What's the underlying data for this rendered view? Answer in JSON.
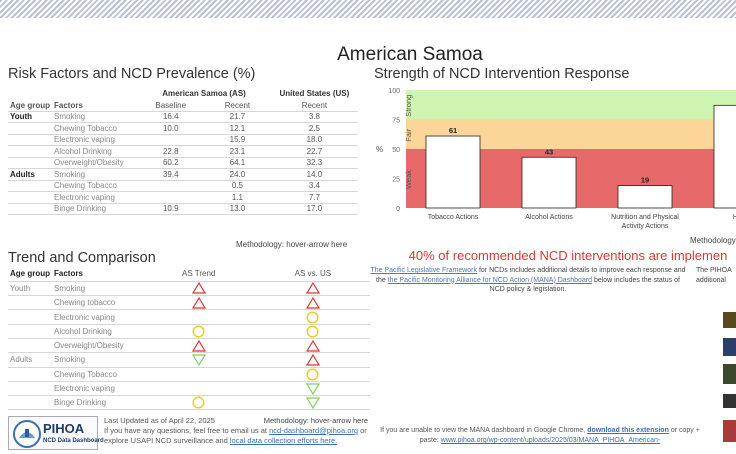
{
  "title": "American Samoa",
  "risk_table": {
    "section_title": "Risk Factors and NCD Prevalence (%)",
    "as_header": "American Samoa (AS)",
    "us_header": "United States (US)",
    "col_age": "Age group",
    "col_factors": "Factors",
    "col_baseline": "Baseline",
    "col_recent": "Recent",
    "col_us_recent": "Recent",
    "groups": [
      {
        "name": "Youth",
        "rows": [
          {
            "factor": "Smoking",
            "baseline": "16.4",
            "recent": "21.7",
            "us": "3.8"
          },
          {
            "factor": "Chewing Tobacco",
            "baseline": "10.0",
            "recent": "12.1",
            "us": "2.5"
          },
          {
            "factor": "Electronic vaping",
            "baseline": "",
            "recent": "15.9",
            "us": "18.0"
          },
          {
            "factor": "Alcohol Drinking",
            "baseline": "22.8",
            "recent": "23.1",
            "us": "22.7"
          },
          {
            "factor": "Overweight/Obesity",
            "baseline": "60.2",
            "recent": "64.1",
            "us": "32.3"
          }
        ]
      },
      {
        "name": "Adults",
        "rows": [
          {
            "factor": "Smoking",
            "baseline": "39.4",
            "recent": "24.0",
            "us": "14.0"
          },
          {
            "factor": "Chewing Tobacco",
            "baseline": "",
            "recent": "0.5",
            "us": "3.4"
          },
          {
            "factor": "Electronic vaping",
            "baseline": "",
            "recent": "1.1",
            "us": "7.7"
          },
          {
            "factor": "Binge Drinking",
            "baseline": "10.9",
            "recent": "13.0",
            "us": "17.0"
          }
        ]
      }
    ],
    "methodology": "Methodology: hover-arrow  here"
  },
  "trend": {
    "section_title": "Trend and Comparison",
    "col_age": "Age group",
    "col_factors": "Factors",
    "col_trend": "AS Trend",
    "col_vs": "AS vs. US",
    "groups": [
      {
        "name": "Youth",
        "rows": [
          {
            "factor": "Smoking",
            "trend": "up-red",
            "vs": "up-red"
          },
          {
            "factor": "Chewing tobacco",
            "trend": "up-red",
            "vs": "up-red"
          },
          {
            "factor": "Electronic vaping",
            "trend": "",
            "vs": "circle-yellow"
          },
          {
            "factor": "Alcohol Drinking",
            "trend": "circle-yellow",
            "vs": "circle-yellow"
          },
          {
            "factor": "Overweight/Obesity",
            "trend": "up-red",
            "vs": "up-red"
          }
        ]
      },
      {
        "name": "Adults",
        "rows": [
          {
            "factor": "Smoking",
            "trend": "down-green",
            "vs": "up-red"
          },
          {
            "factor": "Chewing Tobacco",
            "trend": "",
            "vs": "circle-yellow"
          },
          {
            "factor": "Electronic vaping",
            "trend": "",
            "vs": "down-green"
          },
          {
            "factor": "Binge Drinking",
            "trend": "circle-yellow",
            "vs": "down-green"
          }
        ]
      }
    ]
  },
  "chart_section_title": "Strength of NCD Intervention Response",
  "chart_data": {
    "type": "bar",
    "title": "Strength of NCD Intervention Response",
    "ylabel": "%",
    "ylim": [
      0,
      100
    ],
    "yticks": [
      0,
      25,
      50,
      75,
      100
    ],
    "bands": [
      {
        "label": "Weak",
        "from": 0,
        "to": 50,
        "color": "#e8696a"
      },
      {
        "label": "Fair",
        "from": 50,
        "to": 75,
        "color": "#fbd698"
      },
      {
        "label": "Strong",
        "from": 75,
        "to": 100,
        "color": "#cdf4b0"
      }
    ],
    "categories": [
      "Tobacco Actions",
      "Alcohol Actions",
      "Nutrition and Physical Activity Actions",
      "Healt"
    ],
    "values": [
      61,
      43,
      19,
      87
    ]
  },
  "chart_methodology": "Methodology:",
  "percent_note": "40% of recommended NCD interventions are implemen",
  "info_left": {
    "link1": "The Pacific Legislative Framework",
    "text1": " for NCDs includes additional details to improve each response and the ",
    "link2": "the Pacific Monitoring Alliance for NCD Action (MANA) Dashboard",
    "text2": " below includes the status of NCD policy & legislation."
  },
  "info_right": "The PIHOA additional",
  "footer": {
    "logo_title": "PIHOA",
    "logo_sub": "NCD Data Dashboard",
    "updated": "Last Updated as of April 22, 2025",
    "methodology": "Methodology: hover-arrow  here",
    "contact_pre": "If you have any questions, feel free to email us at ",
    "email": "ncd-dashboard@pihoa.org",
    "contact_mid": " or explore USAPI NCD surveillance and ",
    "link": "local data collection efforts here."
  },
  "chrome_note": {
    "pre": "If you are unable to view the MANA dashboard in Google Chrome, ",
    "link": "download this extension",
    "post": " or copy + paste: ",
    "url": "www.pihoa.org/wp-content/uploads/2025/03/MANA_PIHOA_American-"
  },
  "colors": {
    "red": "#e03434",
    "yellow": "#e6cf17",
    "green": "#7fcf5b"
  }
}
